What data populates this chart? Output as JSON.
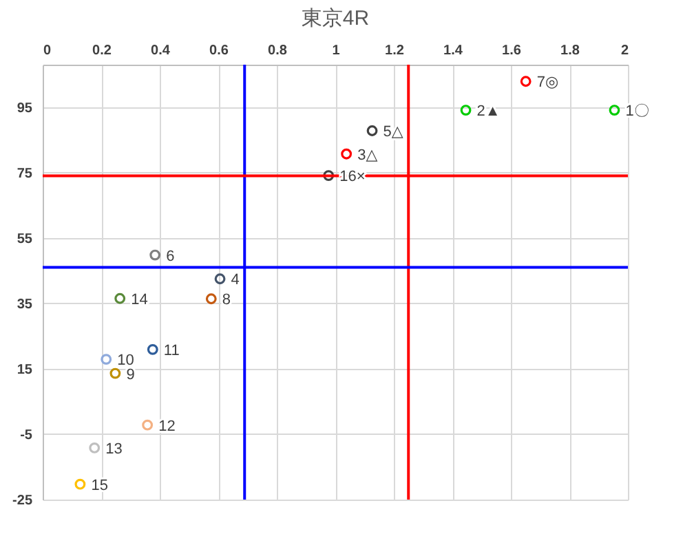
{
  "chart_data": {
    "type": "scatter",
    "title": "東京4R",
    "xlim": [
      0,
      2
    ],
    "xticks": [
      0,
      0.2,
      0.4,
      0.6,
      0.8,
      1,
      1.2,
      1.4,
      1.6,
      1.8,
      2
    ],
    "ylim": [
      -25,
      108
    ],
    "yticks": [
      -25,
      -5,
      15,
      35,
      55,
      75,
      95
    ],
    "grid": true,
    "legend": false,
    "marker": "circle",
    "series": [
      {
        "name": "1〇",
        "color": "#00cc00",
        "x": [
          1.954
        ],
        "values": [
          94.1
        ]
      },
      {
        "name": "2▲",
        "color": "#00cc00",
        "x": [
          1.446
        ],
        "values": [
          94.1
        ]
      },
      {
        "name": "3△",
        "color": "#ff0000",
        "x": [
          1.038
        ],
        "values": [
          80.7
        ]
      },
      {
        "name": "4",
        "color": "#44546a",
        "x": [
          0.606
        ],
        "values": [
          42.5
        ]
      },
      {
        "name": "5△",
        "color": "#404040",
        "x": [
          1.126
        ],
        "values": [
          87.8
        ]
      },
      {
        "name": "6",
        "color": "#808080",
        "x": [
          0.384
        ],
        "values": [
          49.8
        ]
      },
      {
        "name": "7◎",
        "color": "#ff0000",
        "x": [
          1.651
        ],
        "values": [
          102.9
        ]
      },
      {
        "name": "8",
        "color": "#c55a11",
        "x": [
          0.576
        ],
        "values": [
          36.4
        ]
      },
      {
        "name": "9",
        "color": "#bf9000",
        "x": [
          0.248
        ],
        "values": [
          13.6
        ]
      },
      {
        "name": "10",
        "color": "#8faadc",
        "x": [
          0.217
        ],
        "values": [
          17.9
        ]
      },
      {
        "name": "11",
        "color": "#2e5d9a",
        "x": [
          0.376
        ],
        "values": [
          20.9
        ]
      },
      {
        "name": "12",
        "color": "#f4b183",
        "x": [
          0.358
        ],
        "values": [
          -2.2
        ]
      },
      {
        "name": "13",
        "color": "#bfbfbf",
        "x": [
          0.177
        ],
        "values": [
          -9.2
        ]
      },
      {
        "name": "14",
        "color": "#5a8a3a",
        "x": [
          0.264
        ],
        "values": [
          36.5
        ]
      },
      {
        "name": "15",
        "color": "#ffc000",
        "x": [
          0.128
        ],
        "values": [
          -20.3
        ]
      },
      {
        "name": "16×",
        "color": "#404040",
        "x": [
          0.977
        ],
        "values": [
          74.1
        ]
      }
    ],
    "ref_lines": [
      {
        "axis": "x",
        "value": 0.69,
        "color": "#0000ff"
      },
      {
        "axis": "x",
        "value": 1.25,
        "color": "#ff0000"
      },
      {
        "axis": "y",
        "value": 74,
        "color": "#ff0000"
      },
      {
        "axis": "y",
        "value": 46,
        "color": "#0000ff"
      }
    ]
  }
}
